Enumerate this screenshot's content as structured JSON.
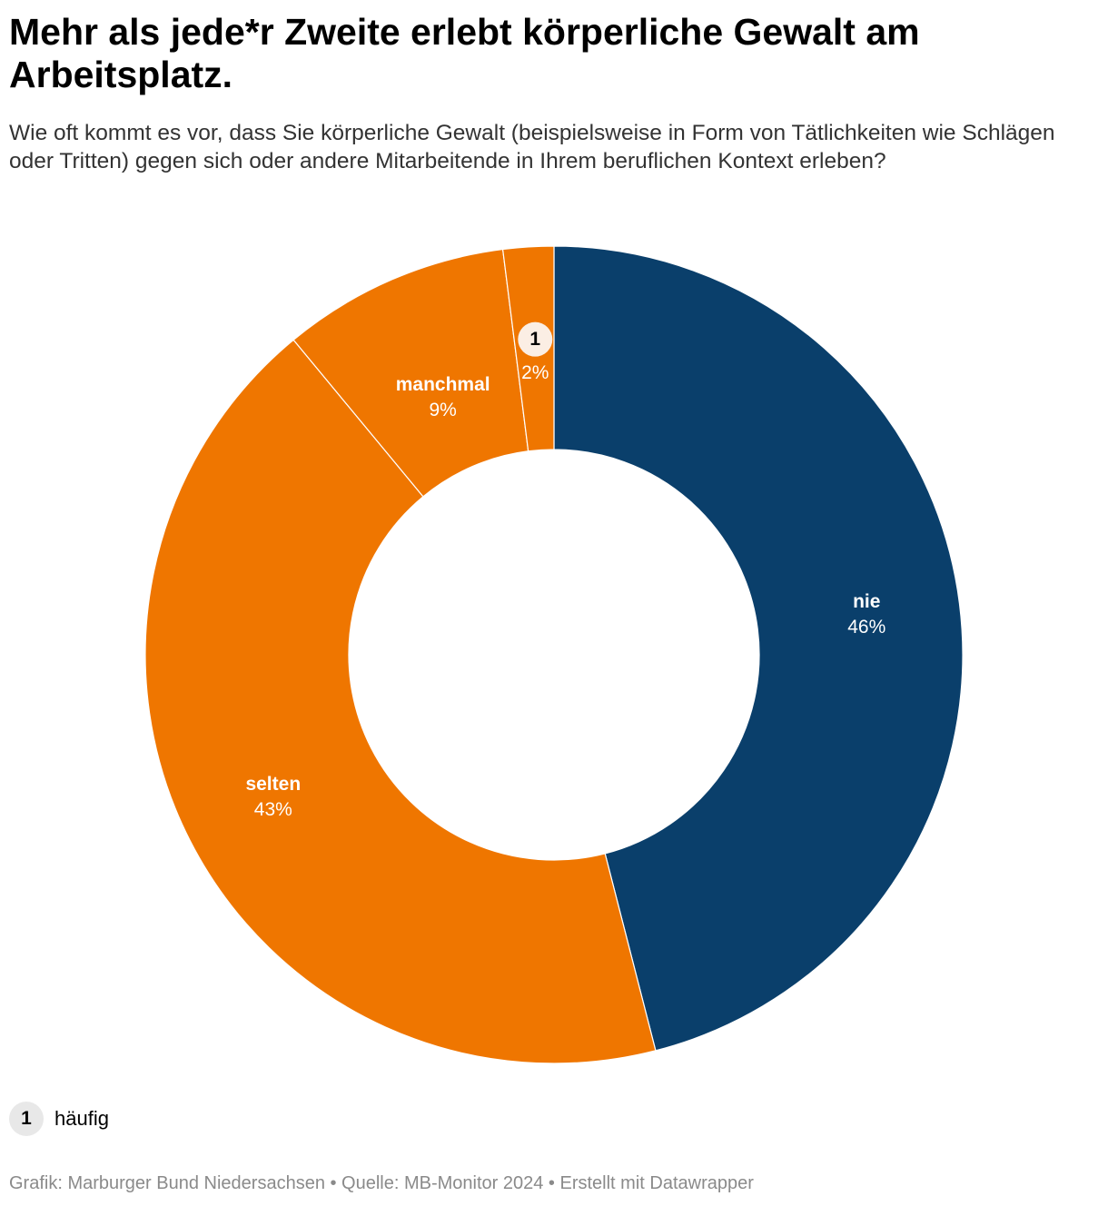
{
  "title": "Mehr als jede*r Zweite erlebt körperliche Gewalt am Arbeitsplatz.",
  "subtitle": "Wie oft kommt es vor, dass Sie körperliche Gewalt (beispielsweise in Form von Tätlichkeiten wie Schlägen oder Tritten) gegen sich oder andere Mitarbeitende in Ihrem beruflichen Kontext erleben?",
  "chart_data": {
    "type": "pie",
    "variant": "donut",
    "start": "top, clockwise",
    "slices": [
      {
        "label": "nie",
        "value": 46,
        "value_label": "46%",
        "color": "#0a3f6b",
        "label_style": "inline"
      },
      {
        "label": "selten",
        "value": 43,
        "value_label": "43%",
        "color": "#ef7600",
        "label_style": "inline"
      },
      {
        "label": "manchmal",
        "value": 9,
        "value_label": "9%",
        "color": "#ef7600",
        "label_style": "inline"
      },
      {
        "label": "häufig",
        "value": 2,
        "value_label": "2%",
        "color": "#ef7600",
        "label_style": "footnote",
        "footnote_marker": "1"
      }
    ]
  },
  "legend": {
    "marker": "1",
    "label": "häufig"
  },
  "footer": "Grafik: Marburger Bund Niedersachsen • Quelle: MB-Monitor 2024 • Erstellt mit Datawrapper"
}
